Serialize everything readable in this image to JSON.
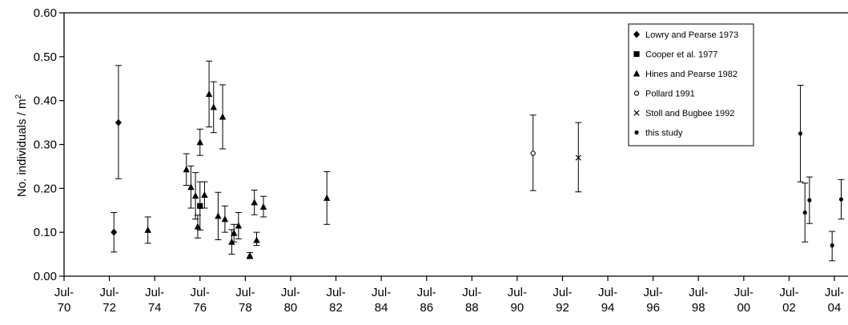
{
  "chart_data": {
    "type": "scatter",
    "title": "",
    "xlabel": "",
    "ylabel": "No. individuals / m",
    "ylabel_sup": "2",
    "ylim": [
      0,
      0.6
    ],
    "yticks": [
      "0.00",
      "0.10",
      "0.20",
      "0.30",
      "0.40",
      "0.50",
      "0.60"
    ],
    "xlim": [
      1970.5,
      2004.5
    ],
    "xticks": [
      {
        "line1": "Jul-",
        "line2": "70"
      },
      {
        "line1": "Jul-",
        "line2": "72"
      },
      {
        "line1": "Jul-",
        "line2": "74"
      },
      {
        "line1": "Jul-",
        "line2": "76"
      },
      {
        "line1": "Jul-",
        "line2": "78"
      },
      {
        "line1": "Jul-",
        "line2": "80"
      },
      {
        "line1": "Jul-",
        "line2": "82"
      },
      {
        "line1": "Jul-",
        "line2": "84"
      },
      {
        "line1": "Jul-",
        "line2": "86"
      },
      {
        "line1": "Jul-",
        "line2": "88"
      },
      {
        "line1": "Jul-",
        "line2": "90"
      },
      {
        "line1": "Jul-",
        "line2": "92"
      },
      {
        "line1": "Jul-",
        "line2": "94"
      },
      {
        "line1": "Jul-",
        "line2": "96"
      },
      {
        "line1": "Jul-",
        "line2": "98"
      },
      {
        "line1": "Jul-",
        "line2": "00"
      },
      {
        "line1": "Jul-",
        "line2": "02"
      },
      {
        "line1": "Jul-",
        "line2": "04"
      }
    ],
    "legend_position": "top-right",
    "grid": false,
    "series": [
      {
        "name": "Lowry and Pearse 1973",
        "marker": "diamond",
        "points": [
          {
            "x": 1972.7,
            "y": 0.1,
            "lo": 0.055,
            "hi": 0.145
          },
          {
            "x": 1972.9,
            "y": 0.35,
            "lo": 0.222,
            "hi": 0.48
          }
        ]
      },
      {
        "name": "Cooper et al. 1977",
        "marker": "square",
        "points": [
          {
            "x": 1976.5,
            "y": 0.16,
            "lo": 0.105,
            "hi": 0.215
          }
        ]
      },
      {
        "name": "Hines and Pearse 1982",
        "marker": "triangle",
        "points": [
          {
            "x": 1974.2,
            "y": 0.105,
            "lo": 0.075,
            "hi": 0.135
          },
          {
            "x": 1975.9,
            "y": 0.243,
            "lo": 0.207,
            "hi": 0.279
          },
          {
            "x": 1976.1,
            "y": 0.203,
            "lo": 0.155,
            "hi": 0.251
          },
          {
            "x": 1976.3,
            "y": 0.183,
            "lo": 0.13,
            "hi": 0.236
          },
          {
            "x": 1976.4,
            "y": 0.113,
            "lo": 0.087,
            "hi": 0.139
          },
          {
            "x": 1976.5,
            "y": 0.305,
            "lo": 0.275,
            "hi": 0.335
          },
          {
            "x": 1976.7,
            "y": 0.185,
            "lo": 0.155,
            "hi": 0.215
          },
          {
            "x": 1976.9,
            "y": 0.415,
            "lo": 0.34,
            "hi": 0.49
          },
          {
            "x": 1977.1,
            "y": 0.385,
            "lo": 0.327,
            "hi": 0.443
          },
          {
            "x": 1977.3,
            "y": 0.137,
            "lo": 0.083,
            "hi": 0.191
          },
          {
            "x": 1977.5,
            "y": 0.363,
            "lo": 0.29,
            "hi": 0.436
          },
          {
            "x": 1977.6,
            "y": 0.13,
            "lo": 0.1,
            "hi": 0.16
          },
          {
            "x": 1977.9,
            "y": 0.078,
            "lo": 0.05,
            "hi": 0.106
          },
          {
            "x": 1978.0,
            "y": 0.098,
            "lo": 0.078,
            "hi": 0.118
          },
          {
            "x": 1978.2,
            "y": 0.115,
            "lo": 0.085,
            "hi": 0.145
          },
          {
            "x": 1978.7,
            "y": 0.047,
            "lo": 0.04,
            "hi": 0.054
          },
          {
            "x": 1978.9,
            "y": 0.168,
            "lo": 0.14,
            "hi": 0.196
          },
          {
            "x": 1979.0,
            "y": 0.082,
            "lo": 0.07,
            "hi": 0.1
          },
          {
            "x": 1979.3,
            "y": 0.158,
            "lo": 0.135,
            "hi": 0.182
          },
          {
            "x": 1982.1,
            "y": 0.178,
            "lo": 0.118,
            "hi": 0.238
          }
        ]
      },
      {
        "name": "Pollard 1991",
        "marker": "circle-open",
        "points": [
          {
            "x": 1991.2,
            "y": 0.28,
            "lo": 0.195,
            "hi": 0.367
          }
        ]
      },
      {
        "name": "Stoll and Bugbee 1992",
        "marker": "cross",
        "points": [
          {
            "x": 1993.2,
            "y": 0.27,
            "lo": 0.192,
            "hi": 0.35
          }
        ]
      },
      {
        "name": "this study",
        "marker": "dot",
        "points": [
          {
            "x": 2003.0,
            "y": 0.325,
            "lo": 0.215,
            "hi": 0.435
          },
          {
            "x": 2003.2,
            "y": 0.145,
            "lo": 0.078,
            "hi": 0.212
          },
          {
            "x": 2003.4,
            "y": 0.173,
            "lo": 0.12,
            "hi": 0.226
          },
          {
            "x": 2004.4,
            "y": 0.07,
            "lo": 0.035,
            "hi": 0.102
          },
          {
            "x": 2004.8,
            "y": 0.175,
            "lo": 0.13,
            "hi": 0.22
          }
        ]
      }
    ]
  }
}
